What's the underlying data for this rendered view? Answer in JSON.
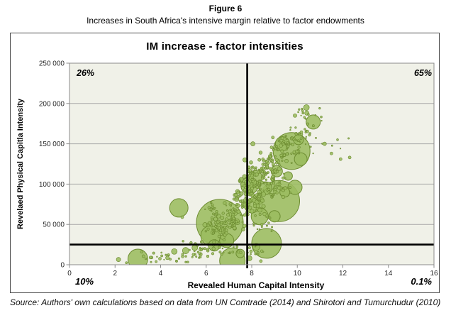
{
  "page": {
    "figure_label": "Figure 6",
    "figure_caption": "Increases in South Africa's intensive margin relative to factor endowments",
    "source_note": "Source: Authors' own calculations based on data from UN Comtrade (2014) and Shirotori and Tumurchudur (2010)"
  },
  "chart_data": {
    "type": "scatter",
    "subtype": "bubble",
    "title": "IM increase - factor intensities",
    "xlabel": "Revealed Human Capital Intensity",
    "ylabel": "Revelaed Physical Capitla Intensity",
    "xlim": [
      0,
      16
    ],
    "ylim": [
      0,
      250000
    ],
    "x_ticks": [
      0,
      2,
      4,
      6,
      8,
      10,
      12,
      14,
      16
    ],
    "y_ticks": [
      0,
      50000,
      100000,
      150000,
      200000,
      250000
    ],
    "y_tick_labels": [
      "0",
      "50 000",
      "100 000",
      "150 000",
      "200 000",
      "250 000"
    ],
    "grid": true,
    "legend": "none",
    "quadrant_shares": {
      "top_left": "26%",
      "top_right": "65%",
      "bottom_left": "10%",
      "bottom_right": "0.1%"
    },
    "crosshair": {
      "x": 7.8,
      "y": 25000
    },
    "colors": {
      "bubble_fill": "#9bbc5e",
      "bubble_stroke": "#6d8c31",
      "plot_bg": "#f0f1e8",
      "grid_line": "#a8a8a8",
      "plot_border": "#8c8c8c",
      "crosshair": "#000000"
    },
    "bubbles": [
      [
        3.0,
        7000,
        14
      ],
      [
        2.15,
        6500,
        3
      ],
      [
        2.5,
        2500,
        1.5
      ],
      [
        3.6,
        9000,
        2
      ],
      [
        4.05,
        11000,
        1.5
      ],
      [
        4.3,
        8500,
        2.5
      ],
      [
        4.6,
        16500,
        4
      ],
      [
        5.1,
        17500,
        4.5
      ],
      [
        4.8,
        70500,
        13
      ],
      [
        4.95,
        59000,
        2
      ],
      [
        5.5,
        21000,
        4
      ],
      [
        5.75,
        13000,
        2.5
      ],
      [
        6.07,
        10500,
        1.7
      ],
      [
        6.6,
        52000,
        33
      ],
      [
        6.2,
        36000,
        14
      ],
      [
        6.35,
        24000,
        8
      ],
      [
        6.9,
        30000,
        10
      ],
      [
        7.15,
        5000,
        18
      ],
      [
        7.5,
        14000,
        6
      ],
      [
        7.9,
        8000,
        3.5
      ],
      [
        8.2,
        22000,
        5
      ],
      [
        8.4,
        4500,
        2
      ],
      [
        8.65,
        26500,
        21
      ],
      [
        9.2,
        79000,
        29
      ],
      [
        8.35,
        60000,
        12
      ],
      [
        8.0,
        73000,
        10
      ],
      [
        7.9,
        98000,
        12
      ],
      [
        8.15,
        108000,
        10
      ],
      [
        8.6,
        95000,
        9
      ],
      [
        9.1,
        116000,
        8
      ],
      [
        9.6,
        110000,
        6
      ],
      [
        9.0,
        60000,
        8
      ],
      [
        9.45,
        90000,
        7
      ],
      [
        9.75,
        141000,
        26
      ],
      [
        10.15,
        131000,
        9
      ],
      [
        9.9,
        96000,
        10
      ],
      [
        9.35,
        150000,
        10
      ],
      [
        10.05,
        155000,
        7
      ],
      [
        10.7,
        177000,
        10
      ],
      [
        10.4,
        195000,
        4
      ],
      [
        10.42,
        188000,
        3
      ],
      [
        9.9,
        185000,
        2.5
      ],
      [
        11.5,
        138000,
        2
      ],
      [
        11.9,
        131000,
        2
      ],
      [
        12.3,
        133000,
        2
      ],
      [
        11.2,
        150000,
        2.5
      ],
      [
        8.05,
        150000,
        3
      ],
      [
        7.7,
        130000,
        3
      ]
    ],
    "dust_clusters": [
      [
        4.4,
        9000,
        1.0,
        5000,
        26,
        0.7,
        2.0
      ],
      [
        5.8,
        19000,
        0.75,
        8000,
        30,
        0.7,
        2.4
      ],
      [
        6.6,
        46000,
        0.55,
        13000,
        65,
        0.8,
        3.2
      ],
      [
        7.2,
        62000,
        0.45,
        13000,
        45,
        0.8,
        3.0
      ],
      [
        7.95,
        90000,
        0.5,
        20000,
        115,
        0.8,
        3.4
      ],
      [
        8.6,
        118000,
        0.5,
        15000,
        70,
        0.8,
        3.0
      ],
      [
        9.5,
        142000,
        0.55,
        12000,
        55,
        0.8,
        2.6
      ],
      [
        10.1,
        163000,
        0.5,
        10000,
        28,
        0.7,
        2.0
      ],
      [
        10.3,
        186000,
        0.5,
        8000,
        13,
        0.7,
        1.5
      ],
      [
        7.6,
        16000,
        0.75,
        9000,
        24,
        0.7,
        2.0
      ],
      [
        8.45,
        50000,
        0.5,
        9000,
        16,
        0.7,
        1.8
      ],
      [
        11.3,
        148000,
        0.7,
        10000,
        8,
        0.7,
        1.4
      ],
      [
        6.3,
        70000,
        0.45,
        7000,
        14,
        0.7,
        1.8
      ],
      [
        9.0,
        100000,
        0.5,
        12000,
        40,
        0.8,
        2.6
      ]
    ]
  }
}
